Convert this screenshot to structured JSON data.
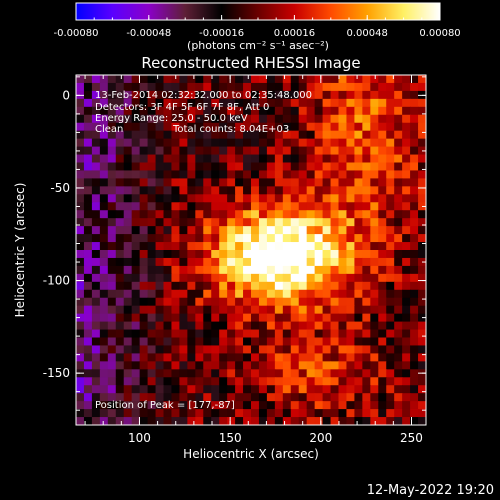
{
  "colorbar": {
    "tick_labels": [
      "-0.00080",
      "-0.00048",
      "-0.00016",
      "0.00016",
      "0.00048",
      "0.00080"
    ],
    "unit_label": "(photons cm⁻² s⁻¹ asec⁻²)",
    "range": [
      -0.0008,
      0.0008
    ],
    "colors": [
      "#0000ff",
      "#5a00ff",
      "#8a00c8",
      "#5e1f36",
      "#000000",
      "#6a0000",
      "#c80000",
      "#ff4a00",
      "#ffa000",
      "#fff064",
      "#ffffff"
    ]
  },
  "chart_data": {
    "type": "heatmap",
    "title": "Reconstructed RHESSI Image",
    "xlabel": "Heliocentric X (arcsec)",
    "ylabel": "Heliocentric Y (arcsec)",
    "xlim": [
      65,
      258
    ],
    "ylim": [
      -178,
      11
    ],
    "xticks": [
      100,
      150,
      200,
      250
    ],
    "yticks": [
      0,
      -50,
      -100,
      -150
    ],
    "peak": [
      177,
      -87
    ],
    "annotations": {
      "time": "13-Feb-2014 02:32:32.000 to 02:35:48.000",
      "detectors": "Detectors: 3F 4F 5F 6F 7F 8F, Att 0",
      "energy": "Energy Range: 25.0 - 50.0 keV",
      "clean": "Clean",
      "counts": "Total counts: 8.04E+03",
      "peak_text": "Position of Peak = [177,-87]"
    }
  },
  "footer": {
    "timestamp": "12-May-2022 19:20"
  }
}
